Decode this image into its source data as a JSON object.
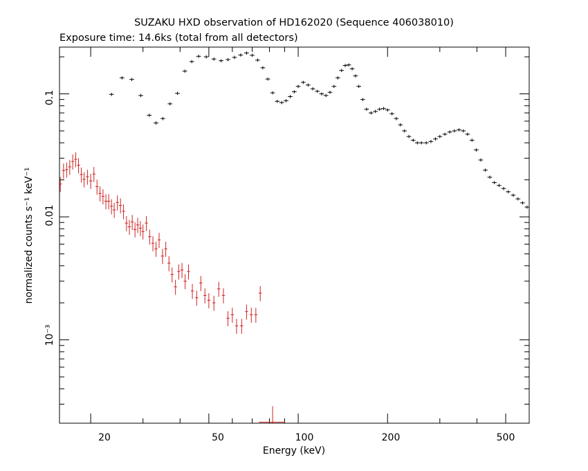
{
  "chart_data": {
    "type": "scatter",
    "title": "SUZAKU HXD observation of HD162020 (Sequence 406038010)",
    "subtitle": "Exposure time: 14.6ks (total from all detectors)",
    "xlabel": "Energy (keV)",
    "ylabel": "normalized counts s⁻¹ keV⁻¹",
    "xscale": "log",
    "yscale": "log",
    "xlim": [
      15.7,
      600
    ],
    "ylim": [
      0.00021,
      0.24
    ],
    "grid": false,
    "x_tick_labels": [
      "20",
      "50",
      "100",
      "200",
      "500"
    ],
    "y_tick_labels": [
      "0.1",
      "0.01",
      "10⁻³"
    ],
    "colors": {
      "gso": "#000000",
      "pin": "#d02020"
    },
    "series": [
      {
        "key": "gso",
        "points": [
          [
            23.5,
            0.099
          ],
          [
            25.5,
            0.135
          ],
          [
            27.5,
            0.131
          ],
          [
            29.5,
            0.097
          ],
          [
            31.5,
            0.067
          ],
          [
            33.2,
            0.058
          ],
          [
            35.0,
            0.063
          ],
          [
            37.0,
            0.083
          ],
          [
            39.2,
            0.101
          ],
          [
            41.5,
            0.153
          ],
          [
            43.8,
            0.183
          ],
          [
            46.2,
            0.202
          ],
          [
            49.0,
            0.2
          ],
          [
            52.0,
            0.192
          ],
          [
            55.0,
            0.186
          ],
          [
            58.0,
            0.19
          ],
          [
            61.0,
            0.198
          ],
          [
            64.0,
            0.207
          ],
          [
            67.0,
            0.215
          ],
          [
            70.0,
            0.206
          ],
          [
            73.0,
            0.188
          ],
          [
            76.0,
            0.163
          ],
          [
            79.0,
            0.132
          ],
          [
            82.0,
            0.102
          ],
          [
            85.0,
            0.087
          ],
          [
            88.0,
            0.085
          ],
          [
            91.0,
            0.088
          ],
          [
            94.0,
            0.095
          ],
          [
            97.0,
            0.104
          ],
          [
            100.0,
            0.115
          ],
          [
            104.0,
            0.124
          ],
          [
            108.0,
            0.118
          ],
          [
            112.0,
            0.11
          ],
          [
            116.0,
            0.105
          ],
          [
            120.0,
            0.1
          ],
          [
            124.0,
            0.097
          ],
          [
            128.0,
            0.103
          ],
          [
            132.0,
            0.115
          ],
          [
            136.0,
            0.135
          ],
          [
            140.0,
            0.155
          ],
          [
            144.0,
            0.17
          ],
          [
            148.0,
            0.172
          ],
          [
            152.0,
            0.16
          ],
          [
            156.0,
            0.14
          ],
          [
            160.0,
            0.115
          ],
          [
            165.0,
            0.09
          ],
          [
            170.0,
            0.075
          ],
          [
            176.0,
            0.07
          ],
          [
            182.0,
            0.072
          ],
          [
            188.0,
            0.075
          ],
          [
            194.0,
            0.076
          ],
          [
            200.0,
            0.074
          ],
          [
            207.0,
            0.069
          ],
          [
            214.0,
            0.063
          ],
          [
            221.0,
            0.056
          ],
          [
            228.0,
            0.05
          ],
          [
            236.0,
            0.045
          ],
          [
            244.0,
            0.042
          ],
          [
            252.0,
            0.04
          ],
          [
            260.0,
            0.04
          ],
          [
            270.0,
            0.04
          ],
          [
            280.0,
            0.041
          ],
          [
            290.0,
            0.043
          ],
          [
            300.0,
            0.045
          ],
          [
            312.0,
            0.047
          ],
          [
            324.0,
            0.049
          ],
          [
            336.0,
            0.05
          ],
          [
            348.0,
            0.051
          ],
          [
            360.0,
            0.05
          ],
          [
            372.0,
            0.047
          ],
          [
            385.0,
            0.042
          ],
          [
            398.0,
            0.035
          ],
          [
            412.0,
            0.029
          ],
          [
            427.0,
            0.024
          ],
          [
            442.0,
            0.021
          ],
          [
            458.0,
            0.019
          ],
          [
            475.0,
            0.018
          ],
          [
            492.0,
            0.017
          ],
          [
            510.0,
            0.016
          ],
          [
            530.0,
            0.015
          ],
          [
            550.0,
            0.014
          ],
          [
            570.0,
            0.013
          ],
          [
            590.0,
            0.012
          ]
        ]
      },
      {
        "key": "pin",
        "points": [
          [
            15.8,
            0.0185
          ],
          [
            16.2,
            0.0238
          ],
          [
            16.6,
            0.0242
          ],
          [
            17.0,
            0.0255
          ],
          [
            17.4,
            0.0282
          ],
          [
            17.8,
            0.0294
          ],
          [
            18.2,
            0.0263
          ],
          [
            18.6,
            0.0221
          ],
          [
            19.0,
            0.0202
          ],
          [
            19.5,
            0.0212
          ],
          [
            20.0,
            0.0196
          ],
          [
            20.5,
            0.0223
          ],
          [
            21.0,
            0.0176
          ],
          [
            21.5,
            0.0155
          ],
          [
            22.0,
            0.0147
          ],
          [
            22.5,
            0.0134
          ],
          [
            23.0,
            0.0134
          ],
          [
            23.5,
            0.0122
          ],
          [
            24.0,
            0.0114
          ],
          [
            24.6,
            0.0131
          ],
          [
            25.2,
            0.0124
          ],
          [
            25.8,
            0.0111
          ],
          [
            26.4,
            0.0089
          ],
          [
            27.0,
            0.0083
          ],
          [
            27.6,
            0.0091
          ],
          [
            28.2,
            0.0079
          ],
          [
            28.8,
            0.0086
          ],
          [
            29.4,
            0.0081
          ],
          [
            30.0,
            0.0076
          ],
          [
            30.8,
            0.0089
          ],
          [
            31.6,
            0.0069
          ],
          [
            32.4,
            0.0061
          ],
          [
            33.2,
            0.0055
          ],
          [
            34.0,
            0.0065
          ],
          [
            34.9,
            0.0048
          ],
          [
            35.8,
            0.0055
          ],
          [
            36.7,
            0.0042
          ],
          [
            37.6,
            0.0034
          ],
          [
            38.6,
            0.0027
          ],
          [
            39.6,
            0.0036
          ],
          [
            40.6,
            0.0037
          ],
          [
            41.6,
            0.003
          ],
          [
            42.7,
            0.0036
          ],
          [
            44.0,
            0.0025
          ],
          [
            45.5,
            0.0022
          ],
          [
            47.0,
            0.0029
          ],
          [
            48.5,
            0.0023
          ],
          [
            50.0,
            0.0021
          ],
          [
            52.0,
            0.002
          ],
          [
            54.0,
            0.0026
          ],
          [
            56.0,
            0.0023
          ],
          [
            58.0,
            0.0015
          ],
          [
            60.0,
            0.0016
          ],
          [
            62.0,
            0.0013
          ],
          [
            64.5,
            0.0013
          ],
          [
            67.0,
            0.0017
          ],
          [
            69.5,
            0.0016
          ],
          [
            72.0,
            0.0016
          ],
          [
            74.5,
            0.0024
          ],
          [
            82.0,
            0.000214
          ]
        ]
      }
    ]
  }
}
